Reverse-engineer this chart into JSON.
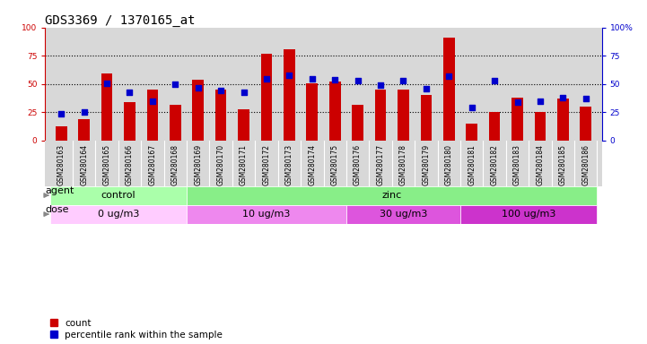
{
  "title": "GDS3369 / 1370165_at",
  "samples": [
    "GSM280163",
    "GSM280164",
    "GSM280165",
    "GSM280166",
    "GSM280167",
    "GSM280168",
    "GSM280169",
    "GSM280170",
    "GSM280171",
    "GSM280172",
    "GSM280173",
    "GSM280174",
    "GSM280175",
    "GSM280176",
    "GSM280177",
    "GSM280178",
    "GSM280179",
    "GSM280180",
    "GSM280181",
    "GSM280182",
    "GSM280183",
    "GSM280184",
    "GSM280185",
    "GSM280186"
  ],
  "count_values": [
    13,
    19,
    59,
    34,
    45,
    32,
    54,
    45,
    28,
    77,
    81,
    51,
    52,
    32,
    45,
    45,
    40,
    91,
    15,
    25,
    38,
    25,
    37,
    30
  ],
  "percentile_values": [
    24,
    25,
    51,
    43,
    35,
    50,
    47,
    44,
    43,
    55,
    58,
    55,
    54,
    53,
    49,
    53,
    46,
    57,
    29,
    53,
    34,
    35,
    38,
    37
  ],
  "bar_color": "#cc0000",
  "dot_color": "#0000cc",
  "bg_color": "#d8d8d8",
  "yticks": [
    0,
    25,
    50,
    75,
    100
  ],
  "bar_width": 0.5,
  "agent_groups": [
    {
      "label": "control",
      "start": 0,
      "end": 6,
      "color": "#aaffaa"
    },
    {
      "label": "zinc",
      "start": 6,
      "end": 24,
      "color": "#88ee88"
    }
  ],
  "dose_groups": [
    {
      "label": "0 ug/m3",
      "start": 0,
      "end": 6,
      "color": "#ffccff"
    },
    {
      "label": "10 ug/m3",
      "start": 6,
      "end": 13,
      "color": "#ee88ee"
    },
    {
      "label": "30 ug/m3",
      "start": 13,
      "end": 18,
      "color": "#dd55dd"
    },
    {
      "label": "100 ug/m3",
      "start": 18,
      "end": 24,
      "color": "#cc33cc"
    }
  ],
  "title_fontsize": 10,
  "tick_fontsize": 6.5,
  "label_fontsize": 8,
  "legend_fontsize": 7.5,
  "xtick_fontsize": 5.5
}
